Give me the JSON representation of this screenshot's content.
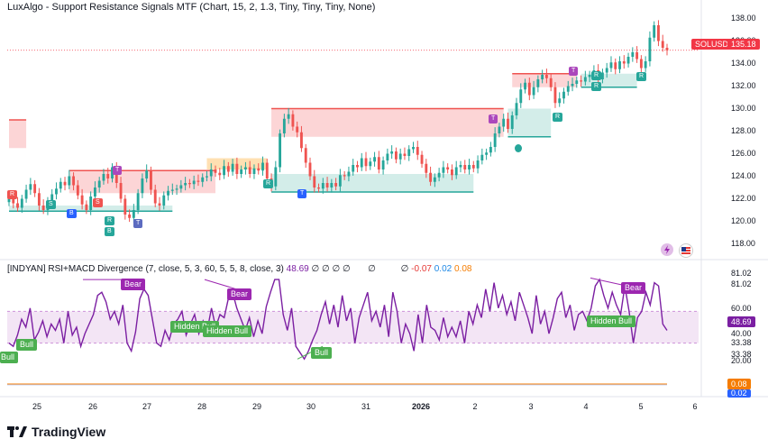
{
  "header": {
    "title": "LuxAlgo - Support Resistance Signals MTF (Chart, 15, 2, 1.3, Tiny, Tiny, Tiny, None)"
  },
  "indicator": {
    "name": "[INDYAN] RSI+MACD Divergence (7, close, 5, 3, 60, 5, 5, 8, close, 3)",
    "value": "48.69",
    "placeholders": [
      "∅",
      "∅",
      "∅",
      "∅"
    ],
    "placeholder2": "∅",
    "placeholder3": "∅",
    "macd_hist": "-0.07",
    "macd": "0.02",
    "signal": "0.08"
  },
  "price_axis": {
    "labels": [
      "138.00",
      "136.00",
      "134.00",
      "132.00",
      "130.00",
      "128.00",
      "126.00",
      "124.00",
      "122.00",
      "120.00",
      "118.00"
    ],
    "symbol": "SOLUSD",
    "last_price": "135.18"
  },
  "indicator_axis": {
    "labels": [
      "81.02",
      "81.02",
      "60.00",
      "48.69",
      "40.00",
      "33.38",
      "33.38",
      "20.00"
    ],
    "macd_tag_1": "0.08",
    "macd_tag_2": "0.02"
  },
  "x_axis": {
    "labels": [
      "25",
      "26",
      "27",
      "28",
      "29",
      "30",
      "31",
      "2026",
      "2",
      "3",
      "4",
      "5",
      "6"
    ]
  },
  "signals": {
    "bear_1": "Bear",
    "bear_2": "Bear",
    "bear_3": "Bear",
    "hidden_bull_1": "Hidden Bull",
    "hidden_bull_2": "Hidden Bull",
    "hidden_bull_3": "Hidden Bull",
    "bull_1": "Bull",
    "bull_2": "Bull",
    "bull_3": "Bull",
    "r_label": "R",
    "s_label": "S",
    "t_label": "T",
    "b_label": "B"
  },
  "brand": {
    "name": "TradingView"
  },
  "colors": {
    "up": "#26a69a",
    "down": "#ef5350",
    "rsi": "#7b1fa2",
    "resistance_fill": "#fcd5d6",
    "support_fill": "#d3ede9",
    "last_price_tag": "#f23645"
  },
  "chart_data": {
    "type": "line",
    "price": {
      "ylim": [
        117,
        139
      ],
      "close": [
        122.0,
        121.6,
        121.2,
        122.0,
        122.8,
        123.3,
        122.5,
        121.4,
        121.0,
        121.8,
        122.4,
        122.9,
        123.5,
        123.2,
        124.0,
        123.2,
        122.3,
        121.5,
        121.0,
        122.2,
        123.0,
        123.6,
        124.2,
        123.8,
        124.8,
        123.4,
        122.0,
        120.6,
        120.3,
        121.0,
        122.5,
        123.8,
        124.5,
        122.8,
        121.6,
        121.4,
        122.3,
        122.7,
        122.8,
        122.9,
        123.2,
        123.4,
        123.3,
        123.6,
        123.5,
        123.9,
        124.0,
        124.6,
        124.3,
        124.1,
        124.9,
        124.4,
        125.1,
        124.2,
        124.6,
        124.8,
        124.2,
        124.7,
        124.5,
        125.2,
        123.8,
        123.1,
        124.8,
        127.8,
        129.1,
        129.5,
        128.4,
        127.9,
        126.5,
        125.2,
        124.0,
        123.0,
        122.9,
        123.4,
        123.0,
        123.4,
        123.1,
        124.1,
        124.0,
        124.4,
        125.0,
        124.8,
        125.6,
        124.9,
        125.3,
        125.7,
        124.6,
        125.4,
        126.0,
        126.2,
        125.5,
        126.0,
        125.8,
        126.4,
        126.6,
        125.9,
        125.1,
        124.3,
        123.5,
        123.9,
        124.3,
        124.8,
        124.6,
        124.1,
        124.8,
        125.0,
        124.6,
        125.0,
        124.7,
        125.4,
        125.9,
        126.1,
        126.6,
        127.8,
        128.4,
        129.1,
        128.2,
        129.4,
        130.5,
        131.7,
        132.3,
        131.2,
        131.9,
        132.6,
        133.0,
        132.7,
        131.9,
        130.5,
        130.9,
        131.5,
        132.0,
        132.2,
        132.5,
        132.4,
        132.8,
        133.0,
        133.4,
        132.6,
        133.2,
        133.6,
        134.1,
        133.5,
        134.2,
        134.0,
        134.6,
        135.0,
        134.4,
        133.6,
        134.2,
        136.3,
        137.4,
        136.0,
        135.4,
        135.18
      ],
      "resistance_zones": [
        {
          "from": 122.5,
          "to": 124.5
        },
        {
          "from": 127.5,
          "to": 130.0
        },
        {
          "from": 129.8,
          "to": 131.0
        },
        {
          "from": 132.2,
          "to": 133.1
        }
      ],
      "support_zones": [
        {
          "from": 120.9,
          "to": 121.4
        },
        {
          "from": 122.6,
          "to": 124.2
        },
        {
          "from": 127.5,
          "to": 130.0
        },
        {
          "from": 131.9,
          "to": 133.1
        }
      ],
      "last": 135.18
    },
    "indicator": {
      "ylim": [
        12,
        88
      ],
      "rsi": [
        40,
        38,
        45,
        55,
        50,
        62,
        42,
        47,
        54,
        44,
        52,
        48,
        55,
        40,
        60,
        45,
        50,
        38,
        46,
        52,
        58,
        70,
        72,
        66,
        55,
        60,
        52,
        64,
        40,
        35,
        47,
        68,
        74,
        70,
        55,
        40,
        38,
        48,
        42,
        52,
        55,
        60,
        45,
        52,
        58,
        46,
        54,
        48,
        62,
        50,
        58,
        56,
        68,
        72,
        62,
        55,
        48,
        56,
        44,
        54,
        46,
        63,
        72,
        80,
        80,
        58,
        48,
        62,
        38,
        34,
        30,
        35,
        42,
        48,
        58,
        66,
        52,
        64,
        50,
        70,
        54,
        62,
        40,
        56,
        64,
        72,
        54,
        60,
        50,
        64,
        44,
        72,
        60,
        40,
        52,
        46,
        35,
        58,
        40,
        64,
        50,
        48,
        42,
        56,
        44,
        50,
        44,
        54,
        40,
        60,
        52,
        64,
        56,
        74,
        60,
        78,
        62,
        70,
        58,
        66,
        54,
        72,
        64,
        56,
        46,
        70,
        52,
        60,
        46,
        56,
        68,
        72,
        56,
        64,
        48,
        58,
        60,
        54,
        62,
        76,
        80,
        70,
        62,
        72,
        64,
        58,
        76,
        60,
        40,
        56,
        60,
        72,
        64,
        78,
        76,
        52,
        48
      ],
      "level_upper": 60,
      "level_lower": 40,
      "last": 48.69,
      "macd_line": 0.02,
      "signal_line": 0.08
    },
    "x_ticks": [
      "25",
      "26",
      "27",
      "28",
      "29",
      "30",
      "31",
      "2026",
      "2",
      "3",
      "4",
      "5",
      "6"
    ]
  }
}
